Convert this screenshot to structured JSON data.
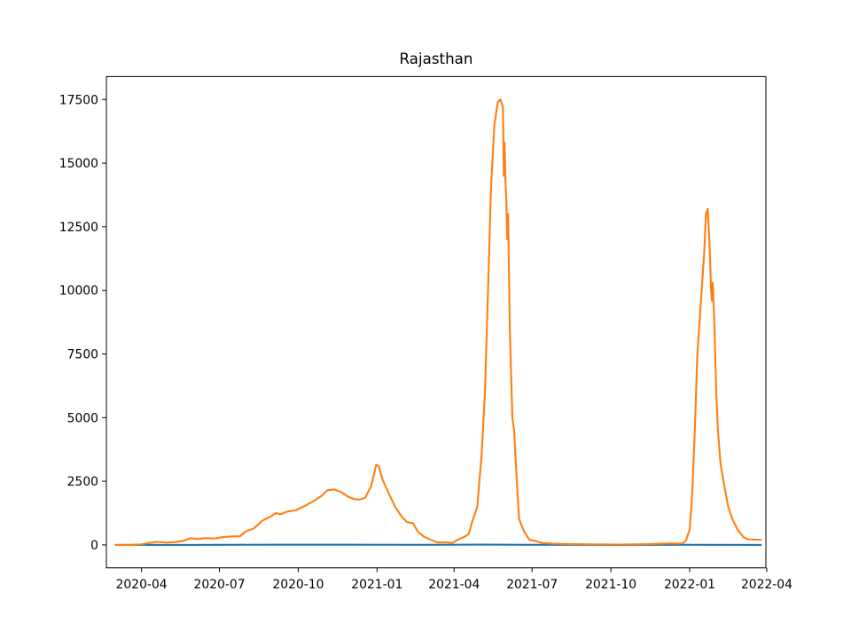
{
  "chart_data": {
    "type": "line",
    "title": "Rajasthan",
    "xlabel": "",
    "ylabel": "",
    "x_axis": {
      "type": "date",
      "range": [
        "2020-02-20",
        "2022-03-31"
      ],
      "ticks": [
        "2020-04",
        "2020-07",
        "2020-10",
        "2021-01",
        "2021-04",
        "2021-07",
        "2021-10",
        "2022-01",
        "2022-04"
      ],
      "tick_labels": [
        "2020-04",
        "2020-07",
        "2020-10",
        "2021-01",
        "2021-04",
        "2021-07",
        "2021-10",
        "2022-01",
        "2022-04"
      ]
    },
    "y_axis": {
      "range": [
        -900,
        18400
      ],
      "ticks": [
        0,
        2500,
        5000,
        7500,
        10000,
        12500,
        15000,
        17500
      ],
      "tick_labels": [
        "0",
        "2500",
        "5000",
        "7500",
        "10000",
        "12500",
        "15000",
        "17500"
      ]
    },
    "grid": false,
    "legend": "none",
    "series": [
      {
        "color": "#1f77b4",
        "points": [
          [
            "2020-03-02",
            0
          ],
          [
            "2020-06-01",
            2
          ],
          [
            "2020-09-01",
            8
          ],
          [
            "2020-12-01",
            10
          ],
          [
            "2021-03-01",
            3
          ],
          [
            "2021-05-01",
            12
          ],
          [
            "2021-07-01",
            5
          ],
          [
            "2021-10-01",
            1
          ],
          [
            "2022-01-01",
            3
          ],
          [
            "2022-03-25",
            1
          ]
        ]
      },
      {
        "color": "#ff7f0e",
        "points": [
          [
            "2020-03-02",
            0
          ],
          [
            "2020-03-20",
            5
          ],
          [
            "2020-04-01",
            20
          ],
          [
            "2020-04-10",
            80
          ],
          [
            "2020-04-20",
            120
          ],
          [
            "2020-04-30",
            90
          ],
          [
            "2020-05-10",
            110
          ],
          [
            "2020-05-20",
            160
          ],
          [
            "2020-05-28",
            260
          ],
          [
            "2020-06-05",
            230
          ],
          [
            "2020-06-15",
            270
          ],
          [
            "2020-06-25",
            250
          ],
          [
            "2020-07-05",
            310
          ],
          [
            "2020-07-15",
            330
          ],
          [
            "2020-07-25",
            340
          ],
          [
            "2020-08-01",
            540
          ],
          [
            "2020-08-10",
            640
          ],
          [
            "2020-08-20",
            950
          ],
          [
            "2020-08-30",
            1120
          ],
          [
            "2020-09-05",
            1250
          ],
          [
            "2020-09-10",
            1200
          ],
          [
            "2020-09-18",
            1310
          ],
          [
            "2020-09-28",
            1360
          ],
          [
            "2020-10-08",
            1520
          ],
          [
            "2020-10-18",
            1700
          ],
          [
            "2020-10-28",
            1920
          ],
          [
            "2020-11-04",
            2150
          ],
          [
            "2020-11-12",
            2180
          ],
          [
            "2020-11-20",
            2080
          ],
          [
            "2020-11-28",
            1900
          ],
          [
            "2020-12-05",
            1800
          ],
          [
            "2020-12-12",
            1780
          ],
          [
            "2020-12-18",
            1850
          ],
          [
            "2020-12-25",
            2300
          ],
          [
            "2020-12-31",
            3150
          ],
          [
            "2021-01-03",
            3100
          ],
          [
            "2021-01-07",
            2600
          ],
          [
            "2021-01-15",
            2000
          ],
          [
            "2021-01-22",
            1500
          ],
          [
            "2021-01-30",
            1100
          ],
          [
            "2021-02-05",
            900
          ],
          [
            "2021-02-12",
            850
          ],
          [
            "2021-02-18",
            500
          ],
          [
            "2021-02-25",
            320
          ],
          [
            "2021-03-05",
            200
          ],
          [
            "2021-03-12",
            100
          ],
          [
            "2021-03-22",
            100
          ],
          [
            "2021-03-30",
            80
          ],
          [
            "2021-04-05",
            200
          ],
          [
            "2021-04-12",
            300
          ],
          [
            "2021-04-18",
            420
          ],
          [
            "2021-04-22",
            900
          ],
          [
            "2021-04-28",
            1500
          ],
          [
            "2021-05-03",
            3500
          ],
          [
            "2021-05-07",
            6000
          ],
          [
            "2021-05-11",
            10500
          ],
          [
            "2021-05-14",
            14000
          ],
          [
            "2021-05-18",
            16500
          ],
          [
            "2021-05-22",
            17400
          ],
          [
            "2021-05-25",
            17500
          ],
          [
            "2021-05-28",
            17200
          ],
          [
            "2021-05-29",
            14500
          ],
          [
            "2021-05-30",
            15800
          ],
          [
            "2021-05-31",
            14200
          ],
          [
            "2021-06-01",
            13500
          ],
          [
            "2021-06-02",
            12000
          ],
          [
            "2021-06-03",
            13000
          ],
          [
            "2021-06-05",
            8500
          ],
          [
            "2021-06-08",
            5000
          ],
          [
            "2021-06-10",
            4500
          ],
          [
            "2021-06-14",
            2000
          ],
          [
            "2021-06-16",
            1000
          ],
          [
            "2021-06-22",
            500
          ],
          [
            "2021-06-28",
            200
          ],
          [
            "2021-07-05",
            150
          ],
          [
            "2021-07-12",
            80
          ],
          [
            "2021-07-25",
            50
          ],
          [
            "2021-08-15",
            30
          ],
          [
            "2021-09-15",
            20
          ],
          [
            "2021-10-15",
            15
          ],
          [
            "2021-11-15",
            30
          ],
          [
            "2021-12-10",
            60
          ],
          [
            "2021-12-20",
            50
          ],
          [
            "2021-12-25",
            80
          ],
          [
            "2021-12-28",
            200
          ],
          [
            "2022-01-01",
            600
          ],
          [
            "2022-01-04",
            2000
          ],
          [
            "2022-01-07",
            4500
          ],
          [
            "2022-01-10",
            7500
          ],
          [
            "2022-01-14",
            9500
          ],
          [
            "2022-01-18",
            11500
          ],
          [
            "2022-01-20",
            13000
          ],
          [
            "2022-01-22",
            13200
          ],
          [
            "2022-01-24",
            12000
          ],
          [
            "2022-01-26",
            10000
          ],
          [
            "2022-01-27",
            9600
          ],
          [
            "2022-01-28",
            10300
          ],
          [
            "2022-01-30",
            8500
          ],
          [
            "2022-02-01",
            6000
          ],
          [
            "2022-02-03",
            4500
          ],
          [
            "2022-02-06",
            3200
          ],
          [
            "2022-02-10",
            2400
          ],
          [
            "2022-02-15",
            1500
          ],
          [
            "2022-02-20",
            1000
          ],
          [
            "2022-02-26",
            600
          ],
          [
            "2022-03-05",
            300
          ],
          [
            "2022-03-10",
            220
          ],
          [
            "2022-03-25",
            200
          ]
        ]
      }
    ]
  }
}
